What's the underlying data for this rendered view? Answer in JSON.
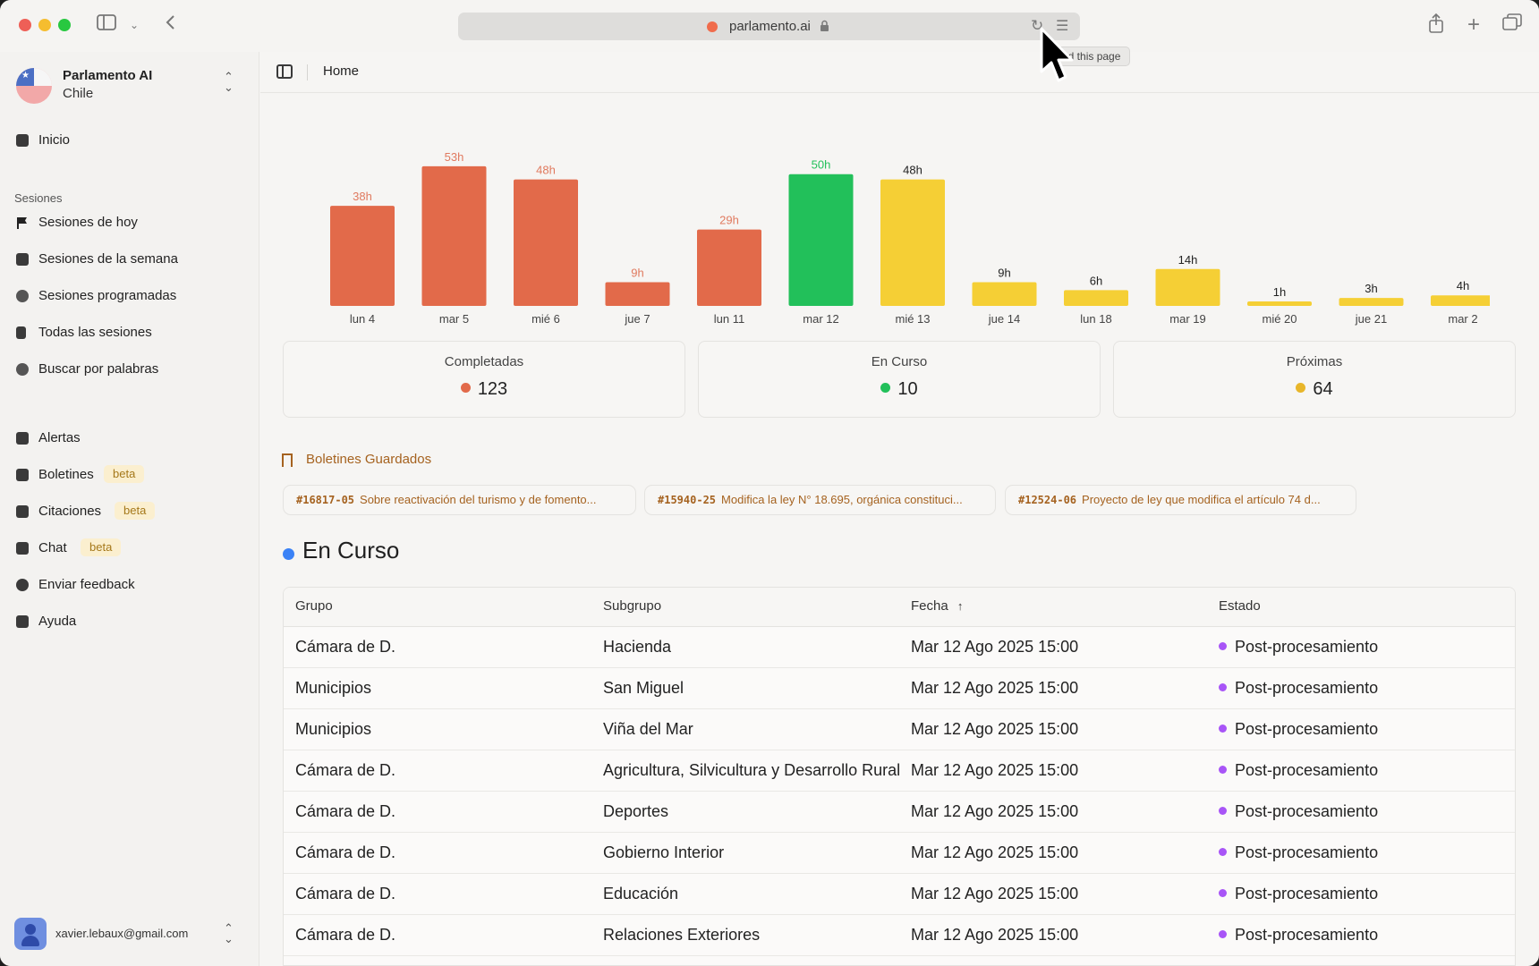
{
  "browser": {
    "url": "parlamento.ai",
    "tooltip": "ad this page"
  },
  "sidebar": {
    "org_name": "Parlamento AI",
    "org_country": "Chile",
    "inicio": "Inicio",
    "section_label": "Sesiones",
    "sessions": [
      {
        "label": "Sesiones de hoy",
        "icon": "flag-icon"
      },
      {
        "label": "Sesiones de la semana",
        "icon": "calendar-icon"
      },
      {
        "label": "Sesiones programadas",
        "icon": "clock-icon"
      },
      {
        "label": "Todas las sesiones",
        "icon": "book-icon"
      },
      {
        "label": "Buscar por palabras",
        "icon": "search-icon"
      }
    ],
    "tools": [
      {
        "label": "Alertas",
        "icon": "bell-icon",
        "badge": ""
      },
      {
        "label": "Boletines",
        "icon": "document-icon",
        "badge": "beta"
      },
      {
        "label": "Citaciones",
        "icon": "siren-icon",
        "badge": "beta"
      },
      {
        "label": "Chat",
        "icon": "chat-icon",
        "badge": "beta"
      },
      {
        "label": "Enviar feedback",
        "icon": "feedback-icon",
        "badge": ""
      },
      {
        "label": "Ayuda",
        "icon": "info-icon",
        "badge": ""
      }
    ],
    "user_email": "xavier.lebaux@gmail.com"
  },
  "header": {
    "breadcrumb": "Home"
  },
  "chart_data": {
    "type": "bar",
    "categories": [
      "lun 4",
      "mar 5",
      "mié 6",
      "jue 7",
      "lun 11",
      "mar 12",
      "mié 13",
      "jue 14",
      "lun 18",
      "mar 19",
      "mié 20",
      "jue 21",
      "mar 2"
    ],
    "values": [
      38,
      53,
      48,
      9,
      29,
      50,
      48,
      9,
      6,
      14,
      1,
      3,
      4
    ],
    "labels": [
      "38h",
      "53h",
      "48h",
      "9h",
      "29h",
      "50h",
      "48h",
      "9h",
      "6h",
      "14h",
      "1h",
      "3h",
      "4h"
    ],
    "status": [
      "completed",
      "completed",
      "completed",
      "completed",
      "completed",
      "current",
      "upcoming",
      "upcoming",
      "upcoming",
      "upcoming",
      "upcoming",
      "upcoming",
      "upcoming"
    ],
    "colors": {
      "completed": "#e26a4a",
      "current": "#22c05a",
      "upcoming": "#f5cf35"
    },
    "label_colors": {
      "completed": "#e07a5f",
      "current": "#22c05a",
      "upcoming": "#222222"
    },
    "ylim": [
      0,
      55
    ]
  },
  "stats": [
    {
      "title": "Completadas",
      "value": "123",
      "color": "#e26a4a"
    },
    {
      "title": "En Curso",
      "value": "10",
      "color": "#22c05a"
    },
    {
      "title": "Próximas",
      "value": "64",
      "color": "#e8b62a"
    }
  ],
  "boletines": {
    "title": "Boletines Guardados",
    "items": [
      {
        "id": "#16817-05",
        "desc": "Sobre reactivación del turismo y de fomento..."
      },
      {
        "id": "#15940-25",
        "desc": "Modifica la ley N° 18.695, orgánica constituci..."
      },
      {
        "id": "#12524-06",
        "desc": "Proyecto de ley que modifica el artículo 74 d..."
      }
    ]
  },
  "en_curso": {
    "title": "En Curso",
    "columns": [
      "Grupo",
      "Subgrupo",
      "Fecha",
      "Estado"
    ],
    "sort_indicator": "↑",
    "rows": [
      [
        "Cámara de D.",
        "Hacienda",
        "Mar 12 Ago 2025 15:00",
        "Post-procesamiento"
      ],
      [
        "Municipios",
        "San Miguel",
        "Mar 12 Ago 2025 15:00",
        "Post-procesamiento"
      ],
      [
        "Municipios",
        "Viña del Mar",
        "Mar 12 Ago 2025 15:00",
        "Post-procesamiento"
      ],
      [
        "Cámara de D.",
        "Agricultura, Silvicultura y Desarrollo Rural",
        "Mar 12 Ago 2025 15:00",
        "Post-procesamiento"
      ],
      [
        "Cámara de D.",
        "Deportes",
        "Mar 12 Ago 2025 15:00",
        "Post-procesamiento"
      ],
      [
        "Cámara de D.",
        "Gobierno Interior",
        "Mar 12 Ago 2025 15:00",
        "Post-procesamiento"
      ],
      [
        "Cámara de D.",
        "Educación",
        "Mar 12 Ago 2025 15:00",
        "Post-procesamiento"
      ],
      [
        "Cámara de D.",
        "Relaciones Exteriores",
        "Mar 12 Ago 2025 15:00",
        "Post-procesamiento"
      ]
    ]
  }
}
